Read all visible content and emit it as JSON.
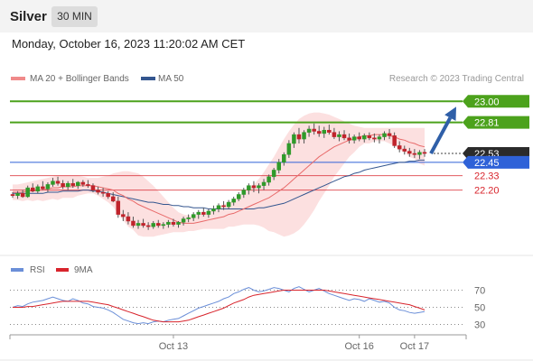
{
  "header": {
    "asset": "Silver",
    "timeframe": "30 MIN"
  },
  "timestamp": "Monday, October 16, 2023 11:20:02 AM CET",
  "legend": {
    "bollinger": "MA 20 + Bollinger Bands",
    "ma50": "MA 50",
    "credit": "Research © 2023 Trading Central"
  },
  "rsi_legend": {
    "rsi": "RSI",
    "ma": "9MA"
  },
  "colors": {
    "green": "#4ca21c",
    "red": "#d8242c",
    "blue": "#2f62d8",
    "ma50": "#34568f",
    "band": "#fbd6d6",
    "rsi": "#6b8fd8",
    "rsi_ma": "#d8242c"
  },
  "chart_data": [
    {
      "type": "candlestick",
      "ylim": [
        21.7,
        23.1
      ],
      "x_tick_labels": [
        "Oct 13",
        "Oct 16",
        "Oct 17"
      ],
      "levels": [
        {
          "value": 23.0,
          "label": "23.00",
          "kind": "resistance"
        },
        {
          "value": 22.81,
          "label": "22.81",
          "kind": "resistance"
        },
        {
          "value": 22.53,
          "label": "22.53",
          "kind": "current"
        },
        {
          "value": 22.45,
          "label": "22.45",
          "kind": "pivot"
        },
        {
          "value": 22.33,
          "label": "22.33",
          "kind": "support"
        },
        {
          "value": 22.2,
          "label": "22.20",
          "kind": "support"
        }
      ],
      "ohlc": [
        [
          22.16,
          22.18,
          22.13,
          22.15
        ],
        [
          22.15,
          22.19,
          22.12,
          22.17
        ],
        [
          22.17,
          22.2,
          22.13,
          22.14
        ],
        [
          22.14,
          22.24,
          22.13,
          22.22
        ],
        [
          22.22,
          22.26,
          22.18,
          22.19
        ],
        [
          22.19,
          22.25,
          22.17,
          22.23
        ],
        [
          22.23,
          22.28,
          22.2,
          22.21
        ],
        [
          22.21,
          22.27,
          22.18,
          22.25
        ],
        [
          22.25,
          22.31,
          22.23,
          22.28
        ],
        [
          22.28,
          22.32,
          22.24,
          22.26
        ],
        [
          22.26,
          22.29,
          22.21,
          22.23
        ],
        [
          22.23,
          22.28,
          22.2,
          22.26
        ],
        [
          22.26,
          22.3,
          22.22,
          22.24
        ],
        [
          22.24,
          22.28,
          22.21,
          22.27
        ],
        [
          22.27,
          22.29,
          22.23,
          22.25
        ],
        [
          22.25,
          22.29,
          22.22,
          22.24
        ],
        [
          22.24,
          22.26,
          22.18,
          22.2
        ],
        [
          22.2,
          22.23,
          22.16,
          22.18
        ],
        [
          22.18,
          22.22,
          22.14,
          22.17
        ],
        [
          22.17,
          22.19,
          22.12,
          22.14
        ],
        [
          22.14,
          22.18,
          22.09,
          22.1
        ],
        [
          22.1,
          22.14,
          21.95,
          21.98
        ],
        [
          21.98,
          22.02,
          21.92,
          21.96
        ],
        [
          21.96,
          22.0,
          21.89,
          21.92
        ],
        [
          21.92,
          21.96,
          21.86,
          21.88
        ],
        [
          21.88,
          21.93,
          21.85,
          21.9
        ],
        [
          21.9,
          21.94,
          21.86,
          21.88
        ],
        [
          21.88,
          21.91,
          21.84,
          21.87
        ],
        [
          21.87,
          21.92,
          21.85,
          21.9
        ],
        [
          21.9,
          21.93,
          21.86,
          21.88
        ],
        [
          21.88,
          21.91,
          21.85,
          21.89
        ],
        [
          21.89,
          21.93,
          21.86,
          21.91
        ],
        [
          21.91,
          21.94,
          21.87,
          21.89
        ],
        [
          21.89,
          21.92,
          21.86,
          21.91
        ],
        [
          21.91,
          21.96,
          21.88,
          21.94
        ],
        [
          21.94,
          21.98,
          21.91,
          21.95
        ],
        [
          21.95,
          22.0,
          21.92,
          21.98
        ],
        [
          21.98,
          22.02,
          21.94,
          22.0
        ],
        [
          22.0,
          22.04,
          21.96,
          21.98
        ],
        [
          21.98,
          22.03,
          21.95,
          22.01
        ],
        [
          22.01,
          22.06,
          21.98,
          22.03
        ],
        [
          22.03,
          22.08,
          22.0,
          22.06
        ],
        [
          22.06,
          22.1,
          22.02,
          22.05
        ],
        [
          22.05,
          22.11,
          22.03,
          22.09
        ],
        [
          22.09,
          22.14,
          22.06,
          22.12
        ],
        [
          22.12,
          22.18,
          22.1,
          22.16
        ],
        [
          22.16,
          22.22,
          22.13,
          22.2
        ],
        [
          22.2,
          22.26,
          22.16,
          22.24
        ],
        [
          22.24,
          22.28,
          22.18,
          22.22
        ],
        [
          22.22,
          22.26,
          22.17,
          22.24
        ],
        [
          22.24,
          22.3,
          22.2,
          22.27
        ],
        [
          22.27,
          22.34,
          22.24,
          22.32
        ],
        [
          22.32,
          22.4,
          22.29,
          22.38
        ],
        [
          22.38,
          22.48,
          22.35,
          22.45
        ],
        [
          22.45,
          22.54,
          22.42,
          22.52
        ],
        [
          22.52,
          22.65,
          22.49,
          22.62
        ],
        [
          22.62,
          22.72,
          22.58,
          22.7
        ],
        [
          22.7,
          22.76,
          22.62,
          22.66
        ],
        [
          22.66,
          22.74,
          22.62,
          22.72
        ],
        [
          22.72,
          22.78,
          22.68,
          22.75
        ],
        [
          22.75,
          22.8,
          22.7,
          22.73
        ],
        [
          22.73,
          22.78,
          22.68,
          22.71
        ],
        [
          22.71,
          22.77,
          22.67,
          22.74
        ],
        [
          22.74,
          22.79,
          22.7,
          22.72
        ],
        [
          22.72,
          22.76,
          22.66,
          22.68
        ],
        [
          22.68,
          22.73,
          22.64,
          22.7
        ],
        [
          22.7,
          22.74,
          22.65,
          22.67
        ],
        [
          22.67,
          22.71,
          22.62,
          22.65
        ],
        [
          22.65,
          22.7,
          22.62,
          22.68
        ],
        [
          22.68,
          22.72,
          22.64,
          22.66
        ],
        [
          22.66,
          22.71,
          22.63,
          22.69
        ],
        [
          22.69,
          22.72,
          22.65,
          22.67
        ],
        [
          22.67,
          22.71,
          22.63,
          22.66
        ],
        [
          22.66,
          22.7,
          22.62,
          22.68
        ],
        [
          22.68,
          22.73,
          22.65,
          22.71
        ],
        [
          22.71,
          22.75,
          22.66,
          22.69
        ],
        [
          22.69,
          22.72,
          22.58,
          22.6
        ],
        [
          22.6,
          22.64,
          22.54,
          22.57
        ],
        [
          22.57,
          22.6,
          22.52,
          22.55
        ],
        [
          22.55,
          22.58,
          22.5,
          22.53
        ],
        [
          22.53,
          22.57,
          22.49,
          22.52
        ],
        [
          22.52,
          22.56,
          22.48,
          22.54
        ],
        [
          22.54,
          22.57,
          22.5,
          22.53
        ]
      ],
      "ma20": [
        22.18,
        22.18,
        22.18,
        22.19,
        22.19,
        22.2,
        22.2,
        22.21,
        22.22,
        22.22,
        22.23,
        22.23,
        22.23,
        22.24,
        22.24,
        22.24,
        22.24,
        22.23,
        22.22,
        22.21,
        22.2,
        22.17,
        22.15,
        22.12,
        22.1,
        22.07,
        22.05,
        22.03,
        22.01,
        21.99,
        21.97,
        21.95,
        21.93,
        21.91,
        21.9,
        21.9,
        21.9,
        21.91,
        21.92,
        21.93,
        21.94,
        21.95,
        21.96,
        21.98,
        21.99,
        22.01,
        22.03,
        22.05,
        22.07,
        22.09,
        22.11,
        22.13,
        22.16,
        22.19,
        22.22,
        22.26,
        22.3,
        22.34,
        22.38,
        22.42,
        22.46,
        22.5,
        22.53,
        22.56,
        22.59,
        22.61,
        22.63,
        22.65,
        22.66,
        22.68,
        22.69,
        22.69,
        22.7,
        22.7,
        22.7,
        22.69,
        22.68,
        22.66,
        22.65,
        22.63,
        22.62,
        22.6,
        22.59
      ],
      "band_upper": [
        22.25,
        22.25,
        22.26,
        22.27,
        22.28,
        22.29,
        22.3,
        22.31,
        22.32,
        22.33,
        22.33,
        22.33,
        22.33,
        22.33,
        22.32,
        22.31,
        22.31,
        22.31,
        22.32,
        22.33,
        22.35,
        22.36,
        22.37,
        22.37,
        22.36,
        22.35,
        22.32,
        22.28,
        22.24,
        22.19,
        22.14,
        22.09,
        22.04,
        22.0,
        21.98,
        21.97,
        21.97,
        21.98,
        21.99,
        22.01,
        22.03,
        22.05,
        22.07,
        22.09,
        22.11,
        22.14,
        22.17,
        22.21,
        22.25,
        22.3,
        22.36,
        22.43,
        22.5,
        22.58,
        22.66,
        22.73,
        22.79,
        22.84,
        22.87,
        22.89,
        22.9,
        22.9,
        22.89,
        22.88,
        22.86,
        22.84,
        22.82,
        22.8,
        22.78,
        22.77,
        22.76,
        22.76,
        22.76,
        22.76,
        22.76,
        22.76,
        22.76,
        22.76,
        22.76,
        22.76,
        22.76,
        22.76,
        22.76
      ],
      "band_lower": [
        22.11,
        22.11,
        22.1,
        22.11,
        22.1,
        22.11,
        22.1,
        22.11,
        22.12,
        22.11,
        22.13,
        22.13,
        22.13,
        22.15,
        22.16,
        22.17,
        22.17,
        22.15,
        22.12,
        22.09,
        22.05,
        21.98,
        21.93,
        21.87,
        21.84,
        21.79,
        21.78,
        21.78,
        21.78,
        21.79,
        21.8,
        21.81,
        21.82,
        21.82,
        21.82,
        21.83,
        21.83,
        21.84,
        21.85,
        21.85,
        21.85,
        21.85,
        21.85,
        21.87,
        21.87,
        21.88,
        21.89,
        21.89,
        21.89,
        21.88,
        21.86,
        21.83,
        21.82,
        21.8,
        21.78,
        21.79,
        21.81,
        21.84,
        21.89,
        21.95,
        22.02,
        22.1,
        22.17,
        22.24,
        22.32,
        22.38,
        22.44,
        22.5,
        22.54,
        22.59,
        22.62,
        22.62,
        22.64,
        22.64,
        22.64,
        22.62,
        22.6,
        22.56,
        22.54,
        22.5,
        22.48,
        22.44,
        22.42
      ],
      "ma50": [
        22.17,
        22.17,
        22.17,
        22.17,
        22.17,
        22.17,
        22.17,
        22.18,
        22.18,
        22.18,
        22.19,
        22.19,
        22.19,
        22.19,
        22.2,
        22.2,
        22.19,
        22.19,
        22.18,
        22.17,
        22.16,
        22.15,
        22.14,
        22.13,
        22.12,
        22.11,
        22.1,
        22.09,
        22.09,
        22.08,
        22.07,
        22.07,
        22.06,
        22.06,
        22.05,
        22.05,
        22.04,
        22.04,
        22.04,
        22.03,
        22.03,
        22.03,
        22.03,
        22.03,
        22.03,
        22.03,
        22.03,
        22.03,
        22.03,
        22.04,
        22.04,
        22.05,
        22.06,
        22.07,
        22.08,
        22.1,
        22.12,
        22.14,
        22.16,
        22.18,
        22.2,
        22.22,
        22.24,
        22.26,
        22.28,
        22.3,
        22.32,
        22.33,
        22.35,
        22.36,
        22.38,
        22.39,
        22.4,
        22.41,
        22.42,
        22.43,
        22.44,
        22.45,
        22.45,
        22.46,
        22.46,
        22.47,
        22.47
      ]
    },
    {
      "type": "line",
      "y_ticks": [
        70,
        50,
        30
      ],
      "ylim": [
        20,
        80
      ],
      "series": [
        {
          "name": "RSI",
          "values": [
            50,
            52,
            51,
            54,
            56,
            57,
            58,
            60,
            62,
            60,
            58,
            57,
            60,
            58,
            55,
            54,
            51,
            50,
            49,
            47,
            44,
            40,
            36,
            34,
            32,
            31,
            32,
            31,
            33,
            34,
            33,
            35,
            36,
            37,
            40,
            43,
            46,
            49,
            51,
            53,
            55,
            57,
            60,
            62,
            66,
            68,
            71,
            73,
            70,
            68,
            69,
            71,
            73,
            72,
            70,
            68,
            72,
            74,
            71,
            68,
            70,
            72,
            69,
            66,
            64,
            62,
            60,
            58,
            60,
            59,
            57,
            60,
            58,
            56,
            57,
            55,
            50,
            47,
            46,
            44,
            43,
            44,
            45
          ]
        },
        {
          "name": "9MA",
          "values": [
            50,
            50,
            50,
            51,
            51,
            52,
            53,
            54,
            55,
            56,
            57,
            57,
            57,
            57,
            57,
            57,
            56,
            55,
            54,
            53,
            51,
            49,
            47,
            45,
            43,
            41,
            39,
            37,
            35,
            34,
            33,
            33,
            33,
            33,
            34,
            35,
            37,
            39,
            41,
            43,
            45,
            47,
            49,
            52,
            55,
            57,
            59,
            62,
            64,
            65,
            66,
            67,
            68,
            69,
            70,
            70,
            70,
            70,
            70,
            70,
            70,
            70,
            70,
            69,
            68,
            67,
            66,
            65,
            64,
            63,
            62,
            61,
            60,
            59,
            58,
            57,
            56,
            55,
            54,
            53,
            51,
            49,
            47
          ]
        }
      ]
    }
  ]
}
